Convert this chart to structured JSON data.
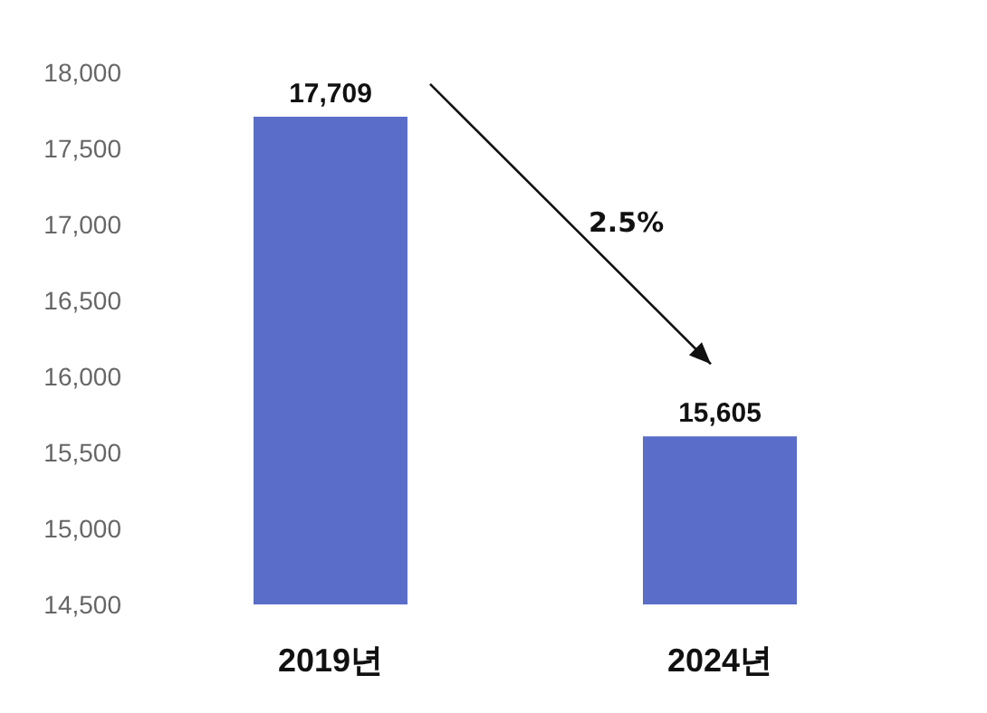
{
  "chart_data": {
    "type": "bar",
    "categories": [
      "2019년",
      "2024년"
    ],
    "values": [
      17709,
      15605
    ],
    "value_labels": [
      "17,709",
      "15,605"
    ],
    "color": "#5a6ec9",
    "ylim": [
      14500,
      18000
    ],
    "yticks": [
      {
        "value": 14500,
        "label": "14,500"
      },
      {
        "value": 15000,
        "label": "15,000"
      },
      {
        "value": 15500,
        "label": "15,500"
      },
      {
        "value": 16000,
        "label": "16,000"
      },
      {
        "value": 16500,
        "label": "16,500"
      },
      {
        "value": 17000,
        "label": "17,000"
      },
      {
        "value": 17500,
        "label": "17,500"
      },
      {
        "value": 18000,
        "label": "18,000"
      }
    ],
    "grid": false,
    "annotations": [
      "2.5%"
    ]
  }
}
